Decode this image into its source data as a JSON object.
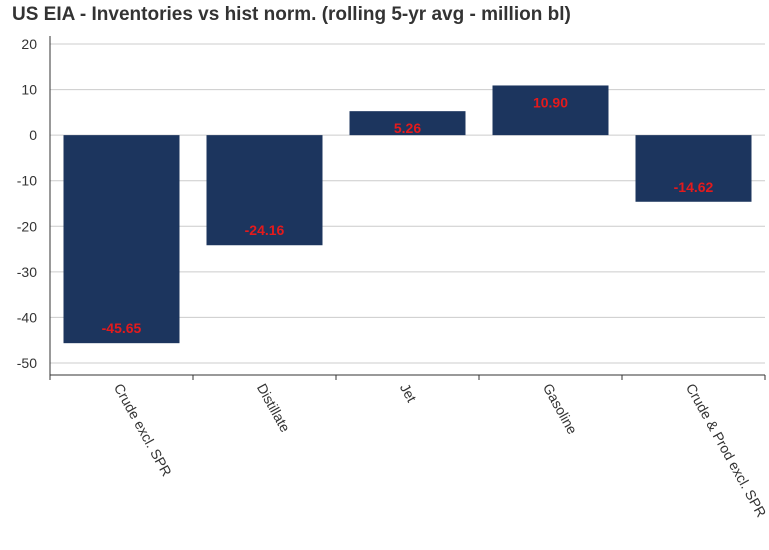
{
  "chart_data": {
    "type": "bar",
    "title": "US EIA - Inventories vs hist norm. (rolling 5-yr avg - million bl)",
    "categories": [
      "Crude excl. SPR",
      "Distillate",
      "Jet",
      "Gasoline",
      "Crude & Prod excl. SPR"
    ],
    "values": [
      -45.65,
      -24.16,
      5.26,
      10.9,
      -14.62
    ],
    "data_labels": [
      "-45.65",
      "-24.16",
      "5.26",
      "10.90",
      "-14.62"
    ],
    "y_ticks": [
      20,
      10,
      0,
      -10,
      -20,
      -30,
      -40,
      -50
    ],
    "ylim": [
      -50,
      20
    ],
    "xlabel": "",
    "ylabel": "",
    "grid": true,
    "legend": "none",
    "bar_color": "#1c355e",
    "label_color": "#e41a1c",
    "grid_color": "#cccccc"
  }
}
